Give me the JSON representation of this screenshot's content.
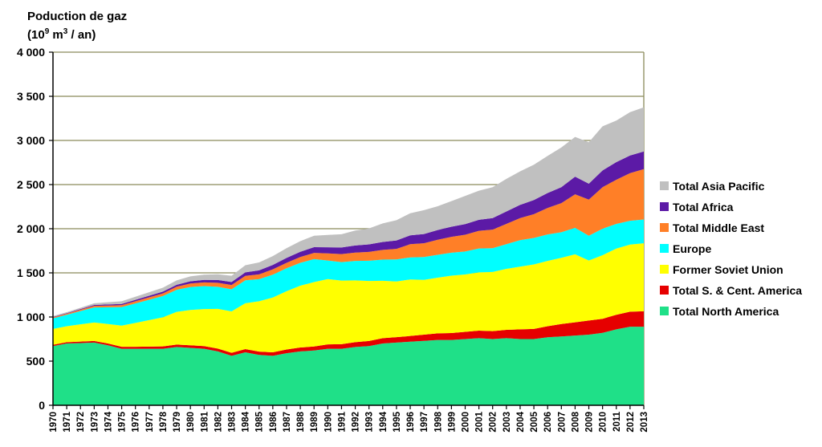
{
  "chart_data": {
    "type": "area",
    "stacked": true,
    "title_line1": "Poduction de gaz",
    "title_line2_prefix": "(10",
    "title_line2_sup": "9",
    "title_line2_mid": " m",
    "title_line2_sup2": "3",
    "title_line2_suffix": " / an)",
    "ylim": [
      0,
      4000
    ],
    "yticks": [
      0,
      500,
      1000,
      1500,
      2000,
      2500,
      3000,
      3500,
      4000
    ],
    "ytick_labels": [
      "0",
      "500",
      "1 000",
      "1 500",
      "2 000",
      "2 500",
      "3 000",
      "3 500",
      "4 000"
    ],
    "grid": true,
    "legend_position": "right",
    "x": [
      "1970",
      "1971",
      "1972",
      "1973",
      "1974",
      "1975",
      "1976",
      "1977",
      "1978",
      "1979",
      "1980",
      "1981",
      "1982",
      "1983",
      "1984",
      "1985",
      "1986",
      "1987",
      "1988",
      "1989",
      "1990",
      "1991",
      "1992",
      "1993",
      "1994",
      "1995",
      "1996",
      "1997",
      "1998",
      "1999",
      "2000",
      "2001",
      "2002",
      "2003",
      "2004",
      "2005",
      "2006",
      "2007",
      "2008",
      "2009",
      "2010",
      "2011",
      "2012",
      "2013"
    ],
    "series": [
      {
        "name": "Total North America",
        "color": "#1fe088",
        "values": [
          670,
          700,
          705,
          710,
          680,
          640,
          640,
          640,
          640,
          660,
          650,
          640,
          610,
          560,
          600,
          570,
          560,
          590,
          610,
          620,
          640,
          640,
          660,
          670,
          700,
          710,
          720,
          730,
          740,
          740,
          750,
          760,
          750,
          760,
          750,
          750,
          770,
          780,
          790,
          800,
          820,
          860,
          890,
          890
        ]
      },
      {
        "name": "Total S. & Cent. America",
        "color": "#e60000",
        "values": [
          15,
          15,
          17,
          18,
          20,
          22,
          23,
          25,
          27,
          28,
          30,
          30,
          32,
          34,
          36,
          38,
          40,
          42,
          44,
          46,
          50,
          52,
          55,
          58,
          60,
          62,
          65,
          70,
          75,
          78,
          82,
          86,
          90,
          95,
          110,
          115,
          125,
          140,
          150,
          160,
          160,
          165,
          170,
          175
        ]
      },
      {
        "name": "Former Soviet Union",
        "color": "#ffff00",
        "values": [
          180,
          180,
          195,
          210,
          220,
          240,
          270,
          300,
          330,
          370,
          400,
          420,
          450,
          470,
          520,
          570,
          620,
          660,
          700,
          730,
          740,
          720,
          700,
          680,
          650,
          630,
          640,
          620,
          630,
          650,
          650,
          660,
          670,
          690,
          710,
          730,
          740,
          750,
          770,
          680,
          720,
          750,
          760,
          770
        ]
      },
      {
        "name": "Europe",
        "color": "#00ffff",
        "values": [
          120,
          130,
          150,
          170,
          190,
          210,
          220,
          230,
          240,
          250,
          260,
          260,
          250,
          250,
          260,
          250,
          260,
          260,
          260,
          260,
          210,
          210,
          220,
          230,
          240,
          250,
          250,
          260,
          260,
          260,
          260,
          270,
          270,
          280,
          300,
          300,
          300,
          290,
          300,
          280,
          300,
          280,
          270,
          270
        ]
      },
      {
        "name": "Total Middle East",
        "color": "#ff7f27",
        "values": [
          10,
          12,
          15,
          18,
          20,
          22,
          25,
          28,
          30,
          35,
          40,
          42,
          45,
          48,
          50,
          55,
          60,
          62,
          65,
          70,
          80,
          90,
          95,
          100,
          110,
          120,
          150,
          155,
          170,
          180,
          190,
          200,
          210,
          230,
          250,
          270,
          300,
          330,
          380,
          410,
          470,
          500,
          540,
          570
        ]
      },
      {
        "name": "Total Africa",
        "color": "#5c1aa6",
        "values": [
          5,
          6,
          8,
          10,
          12,
          14,
          16,
          18,
          20,
          22,
          25,
          28,
          32,
          35,
          40,
          45,
          50,
          55,
          60,
          65,
          70,
          75,
          80,
          85,
          90,
          95,
          100,
          105,
          110,
          115,
          120,
          125,
          130,
          140,
          150,
          160,
          170,
          180,
          200,
          180,
          190,
          200,
          200,
          200
        ]
      },
      {
        "name": "Total Asia Pacific",
        "color": "#c0c0c0",
        "values": [
          10,
          12,
          15,
          20,
          25,
          30,
          35,
          40,
          45,
          50,
          55,
          60,
          65,
          70,
          80,
          90,
          100,
          110,
          120,
          130,
          140,
          150,
          170,
          180,
          210,
          230,
          250,
          270,
          270,
          290,
          320,
          330,
          350,
          370,
          380,
          400,
          420,
          450,
          450,
          470,
          500,
          470,
          490,
          500
        ]
      }
    ],
    "legend_order": [
      "Total Asia Pacific",
      "Total Africa",
      "Total Middle East",
      "Europe",
      "Former Soviet Union",
      "Total S. & Cent. America",
      "Total North America"
    ]
  }
}
